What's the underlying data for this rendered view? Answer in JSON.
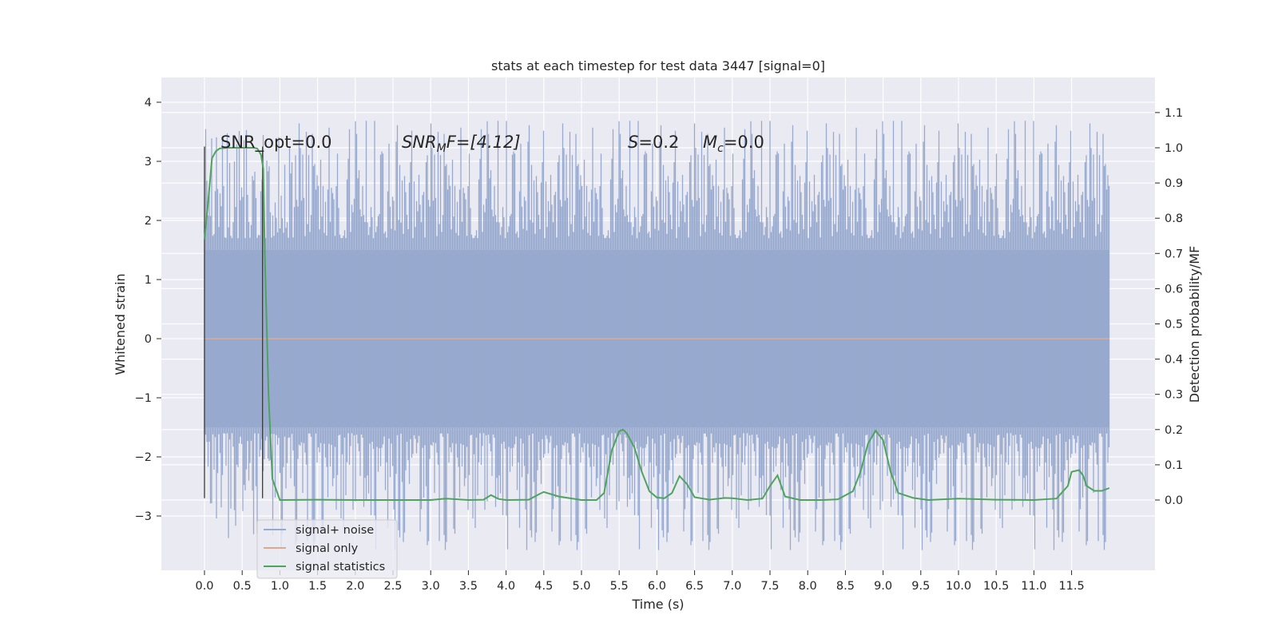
{
  "chart_data": {
    "type": "line",
    "title": "stats at each timestep for test data 3447 [signal=0]",
    "xlabel": "Time (s)",
    "ylabel": "Whitened strain",
    "y2label": "Detection probability/MF",
    "xlim": [
      -0.5,
      12.7
    ],
    "ylim": [
      -3.9,
      4.4
    ],
    "y2lim": [
      -0.2,
      1.19
    ],
    "x_ticks": [
      "0.0",
      "0.5",
      "1.0",
      "1.5",
      "2.0",
      "2.5",
      "3.0",
      "3.5",
      "4.0",
      "4.5",
      "5.0",
      "5.5",
      "6.0",
      "6.5",
      "7.0",
      "7.5",
      "8.0",
      "8.5",
      "9.0",
      "9.5",
      "10.0",
      "10.5",
      "11.0",
      "11.5"
    ],
    "y_ticks": [
      "4",
      "3",
      "2",
      "1",
      "0",
      "−1",
      "−2",
      "−3"
    ],
    "y2_ticks": [
      "1.1",
      "1.0",
      "0.9",
      "0.8",
      "0.7",
      "0.6",
      "0.5",
      "0.4",
      "0.3",
      "0.2",
      "0.1",
      "0.0"
    ],
    "annotations": {
      "snr_opt": "SNR_opt=0.0",
      "snr_mf_main": "SNR",
      "snr_mf_sub": "M",
      "snr_mf_rest": "F=[4.12]",
      "s_main": "S",
      "s_rest": "=0.2",
      "mc_main": "M",
      "mc_sub": "c",
      "mc_rest": "=0.0"
    },
    "vlines_x": [
      0.0,
      0.77
    ],
    "legend_position": "lower-left",
    "series": [
      {
        "name": "signal+ noise",
        "color": "#98a9cf",
        "envelope": "noise",
        "x_range": [
          0.0,
          12.0
        ],
        "band": [
          -1.5,
          1.5
        ]
      },
      {
        "name": "signal only",
        "color": "#dca890",
        "x": [
          0.0,
          12.0
        ],
        "values": [
          0.0,
          0.0
        ]
      },
      {
        "name": "signal statistics",
        "color": "#4fa35f",
        "axis": "right",
        "x": [
          0.0,
          0.05,
          0.1,
          0.15,
          0.2,
          0.3,
          0.4,
          0.5,
          0.6,
          0.65,
          0.7,
          0.75,
          0.78,
          0.8,
          0.85,
          0.9,
          1.0,
          1.5,
          2.0,
          2.5,
          3.0,
          3.2,
          3.5,
          3.7,
          3.8,
          3.9,
          4.0,
          4.3,
          4.45,
          4.5,
          4.7,
          5.0,
          5.2,
          5.3,
          5.4,
          5.5,
          5.55,
          5.6,
          5.7,
          5.8,
          5.9,
          6.0,
          6.1,
          6.2,
          6.3,
          6.4,
          6.5,
          6.7,
          6.9,
          7.0,
          7.2,
          7.4,
          7.5,
          7.6,
          7.7,
          7.9,
          8.2,
          8.4,
          8.6,
          8.7,
          8.8,
          8.9,
          9.0,
          9.1,
          9.2,
          9.4,
          9.6,
          10.0,
          10.5,
          11.0,
          11.3,
          11.45,
          11.5,
          11.6,
          11.65,
          11.7,
          11.8,
          11.9,
          12.0
        ],
        "values": [
          0.74,
          0.85,
          0.97,
          0.99,
          0.998,
          1.0,
          1.0,
          1.0,
          1.0,
          1.0,
          0.998,
          0.98,
          0.94,
          0.7,
          0.3,
          0.06,
          0.0,
          0.001,
          0.0,
          0.0,
          0.0,
          0.004,
          0.0,
          0.001,
          0.014,
          0.003,
          0.0,
          0.001,
          0.018,
          0.023,
          0.01,
          0.0,
          0.0,
          0.02,
          0.14,
          0.195,
          0.2,
          0.19,
          0.15,
          0.08,
          0.025,
          0.007,
          0.005,
          0.02,
          0.068,
          0.045,
          0.008,
          0.001,
          0.006,
          0.005,
          0.0,
          0.004,
          0.04,
          0.07,
          0.01,
          0.0,
          0.0,
          0.002,
          0.025,
          0.08,
          0.16,
          0.197,
          0.17,
          0.08,
          0.02,
          0.006,
          0.0,
          0.004,
          0.001,
          0.0,
          0.004,
          0.04,
          0.08,
          0.085,
          0.07,
          0.04,
          0.026,
          0.026,
          0.034
        ]
      }
    ]
  }
}
